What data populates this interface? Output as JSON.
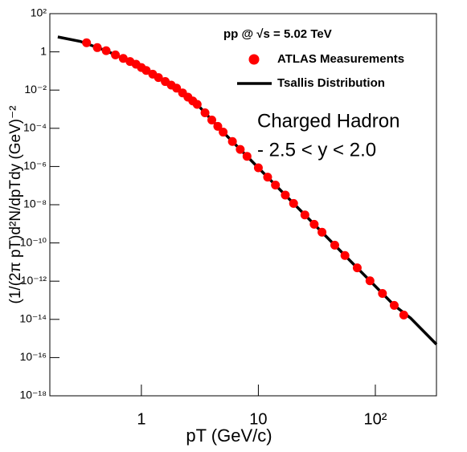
{
  "chart_data": {
    "type": "scatter",
    "subtitle": "pp @ √s = 5.02 TeV",
    "annotations": [
      "Charged Hadron",
      "- 2.5 < y < 2.0"
    ],
    "x_label": "pT (GeV/c)",
    "y_label": "(1/(2π pT)d²N/dpTdy (GeV)⁻²",
    "xlog": true,
    "ylog": true,
    "xlim": [
      0.165,
      333
    ],
    "ylim": [
      1e-18,
      100
    ],
    "xticks": [
      1,
      10,
      {
        "value": 100,
        "label": "10²"
      }
    ],
    "yticks": [
      {
        "value": 1e-18,
        "label": "10⁻¹⁸"
      },
      {
        "value": 1e-16,
        "label": "10⁻¹⁶"
      },
      {
        "value": 1e-14,
        "label": "10⁻¹⁴"
      },
      {
        "value": 1e-12,
        "label": "10⁻¹²"
      },
      {
        "value": 1e-10,
        "label": "10⁻¹⁰"
      },
      {
        "value": 1e-08,
        "label": "10⁻⁸"
      },
      {
        "value": 1e-06,
        "label": "10⁻⁶"
      },
      {
        "value": 0.0001,
        "label": "10⁻⁴"
      },
      {
        "value": 0.01,
        "label": "10⁻²"
      },
      1,
      {
        "value": 100,
        "label": "10²"
      }
    ],
    "series": [
      {
        "name": "ATLAS Measurements",
        "color": "#ff0000",
        "type": "scatter",
        "x": [
          0.34,
          0.42,
          0.5,
          0.6,
          0.7,
          0.8,
          0.9,
          1.0,
          1.1,
          1.25,
          1.4,
          1.6,
          1.8,
          2.0,
          2.25,
          2.5,
          2.75,
          3.0,
          3.5,
          4.0,
          4.5,
          5.0,
          6.0,
          7.0,
          8.0,
          10,
          12,
          14,
          17,
          20,
          25,
          30,
          35,
          45,
          55,
          70,
          90,
          115,
          145,
          175
        ],
        "values": [
          3.0,
          1.67,
          1.15,
          0.693,
          0.453,
          0.313,
          0.226,
          0.151,
          0.107,
          0.0679,
          0.0453,
          0.028,
          0.0183,
          0.0126,
          0.00713,
          0.00429,
          0.0027,
          0.00178,
          0.000649,
          0.000271,
          0.000126,
          6.31e-05,
          2.04e-05,
          7.83e-06,
          3.42e-06,
          8.59e-07,
          2.77e-07,
          1.07e-07,
          3.21e-08,
          1.17e-08,
          2.93e-09,
          9.46e-10,
          3.64e-10,
          7.66e-11,
          2.21e-11,
          4.95e-12,
          1.04e-12,
          2.28e-13,
          5.41e-14,
          1.69e-14
        ]
      },
      {
        "name": "Tsallis Distribution",
        "color": "#000000",
        "type": "line",
        "x": [
          0.193,
          0.3,
          0.5,
          0.7,
          1,
          1.4,
          2,
          3,
          4,
          5,
          7,
          10,
          20,
          30,
          50,
          70,
          100,
          145,
          200,
          333
        ],
        "values": [
          6.03,
          3.54,
          1.15,
          0.453,
          0.151,
          0.0453,
          0.0126,
          0.00178,
          0.000271,
          6.31e-05,
          7.83e-06,
          8.59e-07,
          1.17e-08,
          9.46e-10,
          3.98e-11,
          4.95e-12,
          5.42e-13,
          5.41e-14,
          1.17e-14,
          4.94e-16
        ]
      }
    ]
  }
}
